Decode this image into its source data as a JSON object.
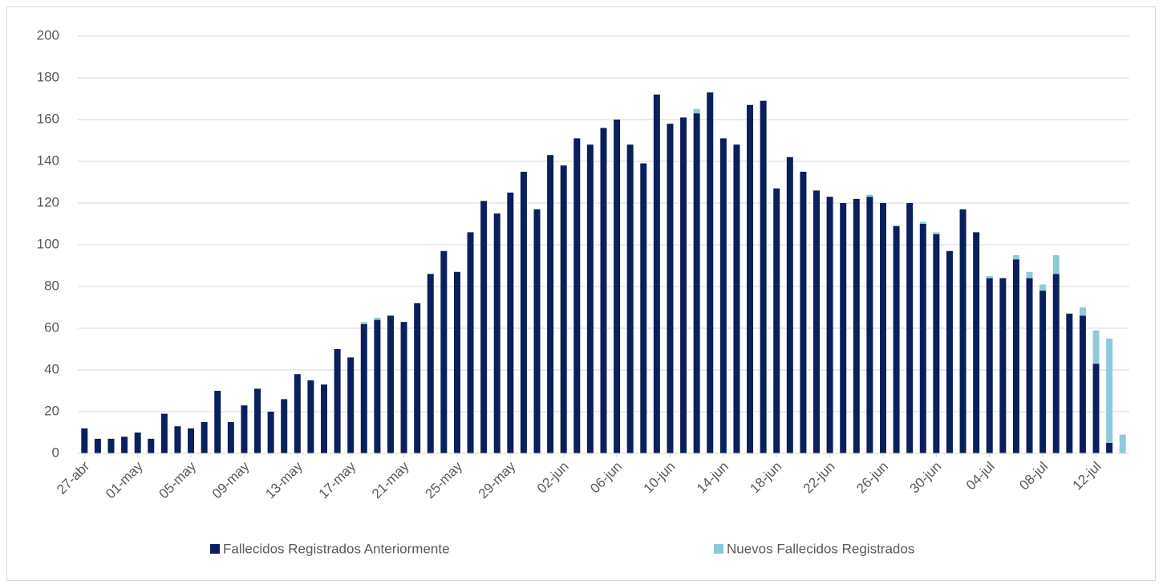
{
  "chart_data": {
    "type": "bar",
    "stacked": true,
    "categories": [
      "27-abr",
      null,
      null,
      null,
      "01-may",
      null,
      null,
      null,
      "05-may",
      null,
      null,
      null,
      "09-may",
      null,
      null,
      null,
      "13-may",
      null,
      null,
      null,
      "17-may",
      null,
      null,
      null,
      "21-may",
      null,
      null,
      null,
      "25-may",
      null,
      null,
      null,
      "29-may",
      null,
      null,
      null,
      "02-jun",
      null,
      null,
      null,
      "06-jun",
      null,
      null,
      null,
      "10-jun",
      null,
      null,
      null,
      "14-jun",
      null,
      null,
      null,
      "18-jun",
      null,
      null,
      null,
      "22-jun",
      null,
      null,
      null,
      "26-jun",
      null,
      null,
      null,
      "30-jun",
      null,
      null,
      null,
      "04-jul",
      null,
      null,
      null,
      "08-jul",
      null,
      null,
      null,
      "12-jul",
      null,
      null
    ],
    "series": [
      {
        "name": "Fallecidos Registrados Anteriormente",
        "color": "#0b1f5c",
        "values": [
          12,
          7,
          7,
          8,
          10,
          7,
          19,
          13,
          12,
          15,
          30,
          15,
          23,
          31,
          20,
          26,
          38,
          35,
          33,
          50,
          46,
          62,
          64,
          66,
          63,
          72,
          86,
          97,
          87,
          106,
          121,
          115,
          125,
          135,
          117,
          143,
          138,
          151,
          148,
          156,
          160,
          148,
          139,
          172,
          158,
          161,
          163,
          173,
          151,
          148,
          167,
          169,
          127,
          142,
          135,
          126,
          123,
          120,
          122,
          123,
          120,
          109,
          120,
          110,
          105,
          97,
          117,
          106,
          84,
          84,
          93,
          84,
          78,
          86,
          67,
          66,
          43,
          5,
          0
        ]
      },
      {
        "name": "Nuevos Fallecidos Registrados",
        "color": "#8ecad8",
        "values": [
          0,
          0,
          0,
          0,
          0,
          0,
          0,
          0,
          0,
          0,
          0,
          0,
          0,
          0,
          0,
          0,
          0,
          0,
          0,
          0,
          0,
          1,
          1,
          0,
          0,
          0,
          0,
          0,
          0,
          0,
          0,
          0,
          0,
          0,
          0,
          0,
          0,
          0,
          0,
          0,
          0,
          0,
          0,
          0,
          0,
          0,
          2,
          0,
          0,
          0,
          0,
          0,
          0,
          0,
          0,
          0,
          0,
          0,
          0,
          1,
          0,
          0,
          0,
          1,
          1,
          0,
          0,
          0,
          1,
          0,
          2,
          3,
          3,
          9,
          0,
          4,
          16,
          50,
          9
        ]
      }
    ],
    "ylim": [
      0,
      200
    ],
    "yticks": [
      0,
      20,
      40,
      60,
      80,
      100,
      120,
      140,
      160,
      180,
      200
    ],
    "grid": true,
    "legend": "bottom"
  }
}
